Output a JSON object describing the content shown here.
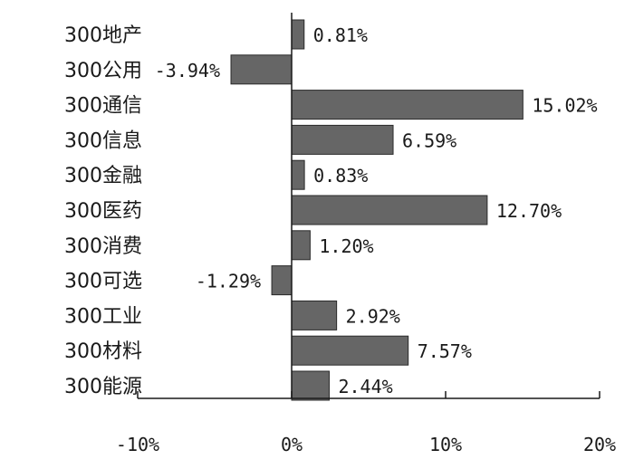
{
  "chart_data": {
    "type": "bar",
    "orientation": "horizontal",
    "categories": [
      "300地产",
      "300公用",
      "300通信",
      "300信息",
      "300金融",
      "300医药",
      "300消费",
      "300可选",
      "300工业",
      "300材料",
      "300能源"
    ],
    "values": [
      0.81,
      -3.94,
      15.02,
      6.59,
      0.83,
      12.7,
      1.2,
      -1.29,
      2.92,
      7.57,
      2.44
    ],
    "value_labels": [
      "0.81%",
      "-3.94%",
      "15.02%",
      "6.59%",
      "0.83%",
      "12.70%",
      "1.20%",
      "-1.29%",
      "2.92%",
      "7.57%",
      "2.44%"
    ],
    "xlim": [
      -10,
      20
    ],
    "x_ticks": [
      -10,
      0,
      10,
      20
    ],
    "x_tick_labels": [
      "-10%",
      "0%",
      "10%",
      "20%"
    ],
    "bar_color": "#666666",
    "grid": false,
    "legend": "none"
  }
}
